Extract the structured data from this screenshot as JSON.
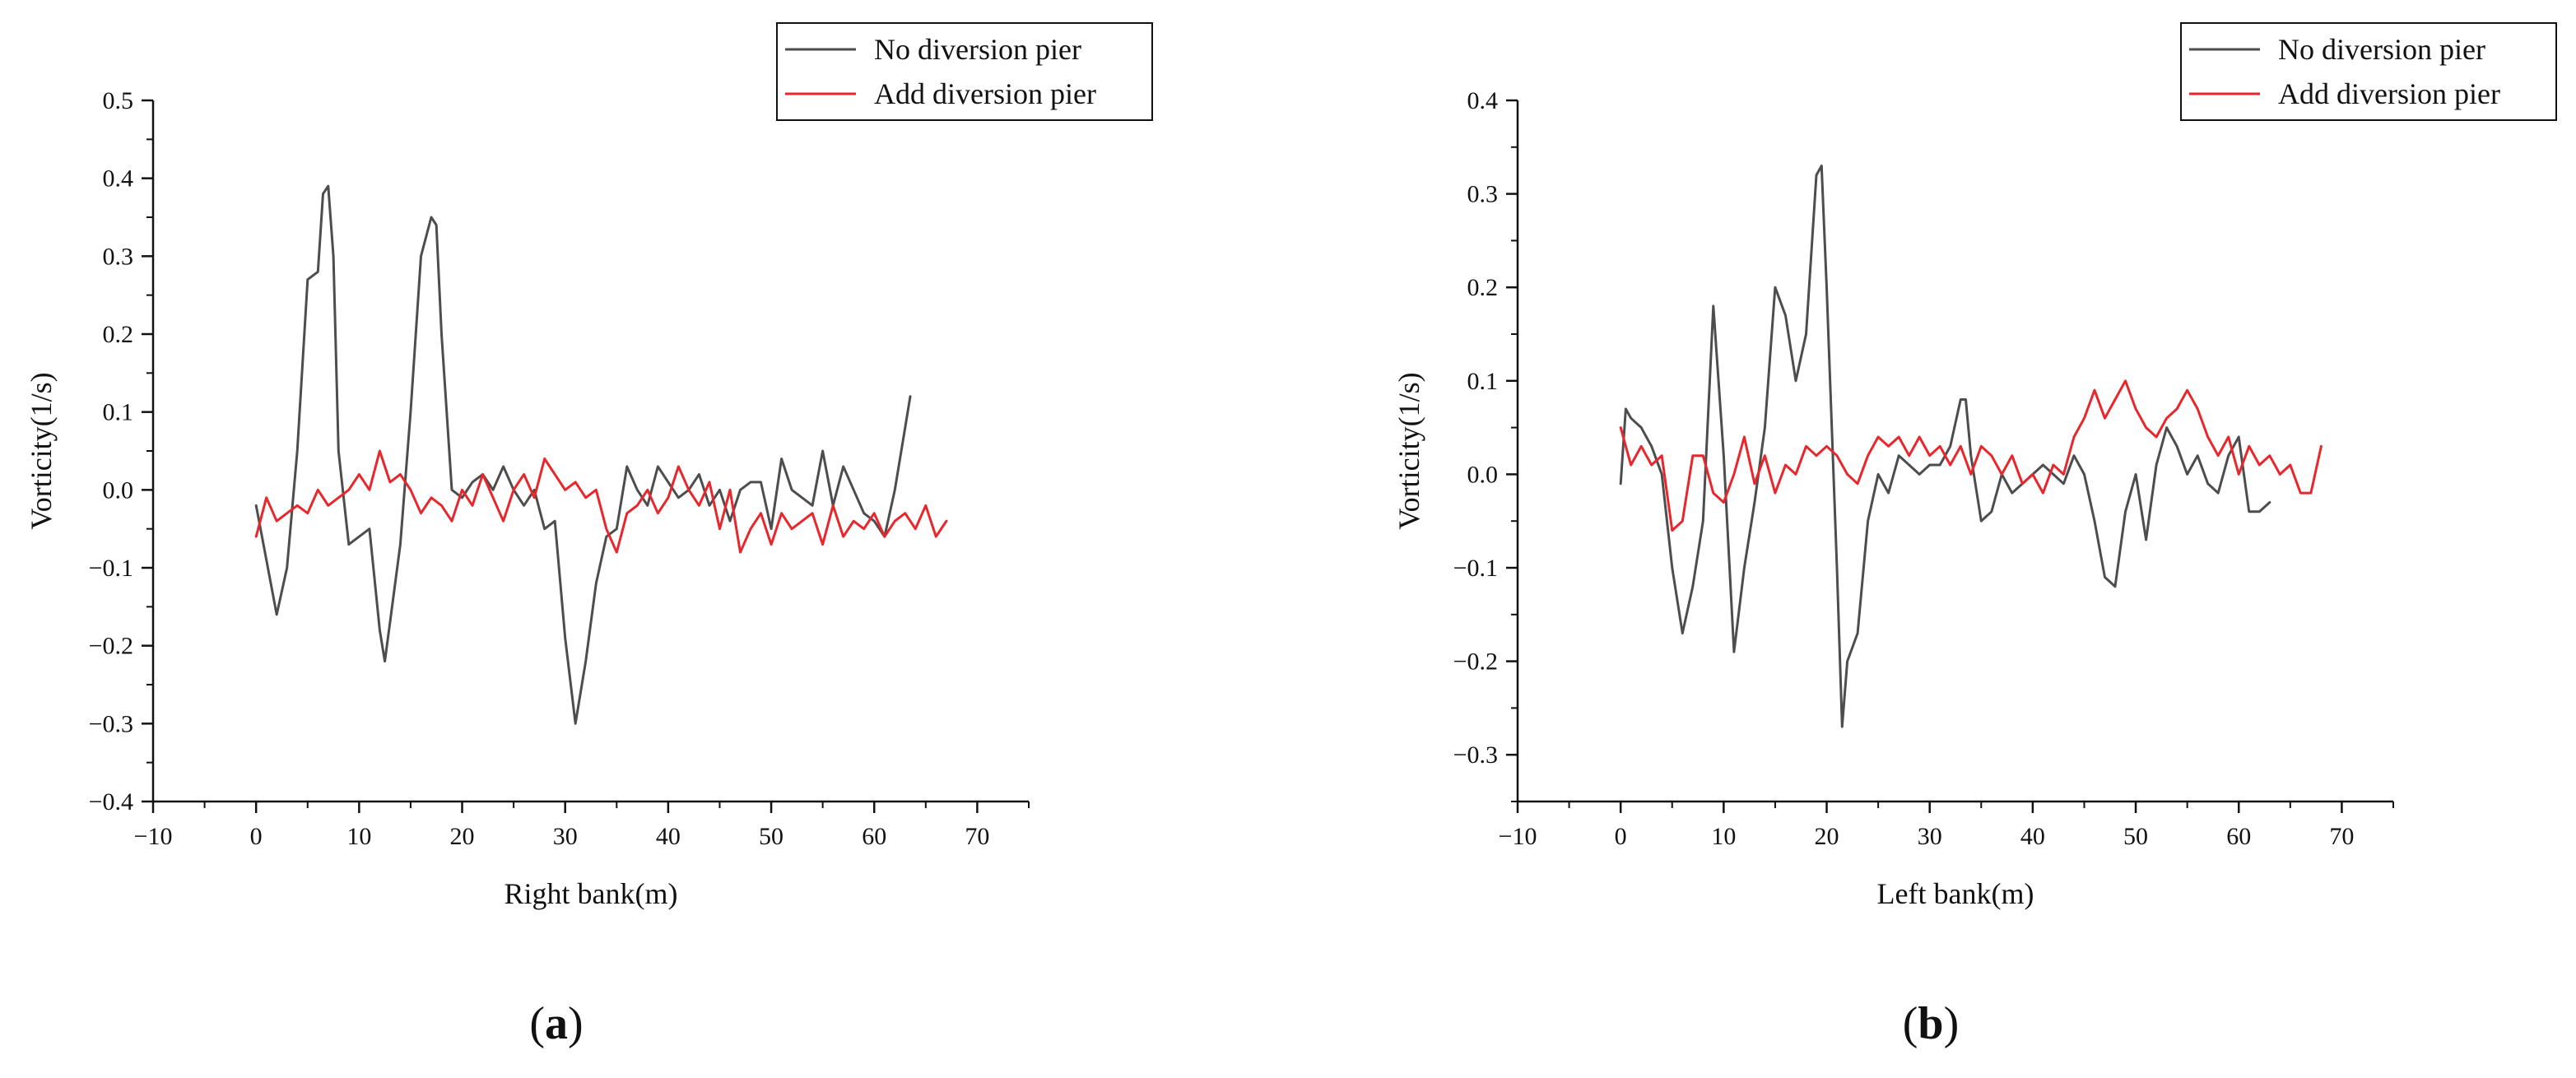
{
  "chart_data": [
    {
      "type": "line",
      "panel_label": "a",
      "xlabel": "Right bank(m)",
      "ylabel": "Vorticity(1/s)",
      "xlim": [
        -10,
        75
      ],
      "ylim": [
        -0.4,
        0.5
      ],
      "xticks": [
        -10,
        0,
        10,
        20,
        30,
        40,
        50,
        60,
        70
      ],
      "yticks": [
        -0.4,
        -0.3,
        -0.2,
        -0.1,
        0.0,
        0.1,
        0.2,
        0.3,
        0.4,
        0.5
      ],
      "ytick_labels": [
        "−0.4",
        "−0.3",
        "−0.2",
        "−0.1",
        "0.0",
        "0.1",
        "0.2",
        "0.3",
        "0.4",
        "0.5"
      ],
      "xtick_labels": [
        "−10",
        "0",
        "10",
        "20",
        "30",
        "40",
        "50",
        "60",
        "70"
      ],
      "legend_position": "top-right",
      "series": [
        {
          "name": "No diversion pier",
          "color": "#4d4d4d",
          "x": [
            0,
            1,
            2,
            3,
            4,
            5,
            6,
            6.5,
            7,
            7.5,
            8,
            9,
            10,
            11,
            12,
            12.5,
            13,
            14,
            15,
            16,
            17,
            17.5,
            18,
            19,
            20,
            21,
            22,
            23,
            24,
            25,
            26,
            27,
            28,
            29,
            30,
            31,
            32,
            33,
            34,
            35,
            36,
            37,
            38,
            39,
            40,
            41,
            42,
            43,
            44,
            45,
            46,
            47,
            48,
            49,
            50,
            51,
            52,
            53,
            54,
            55,
            56,
            57,
            58,
            59,
            60,
            61,
            62,
            63,
            63.5
          ],
          "y": [
            -0.02,
            -0.09,
            -0.16,
            -0.1,
            0.05,
            0.27,
            0.28,
            0.38,
            0.39,
            0.3,
            0.05,
            -0.07,
            -0.06,
            -0.05,
            -0.18,
            -0.22,
            -0.17,
            -0.07,
            0.1,
            0.3,
            0.35,
            0.34,
            0.2,
            0.0,
            -0.01,
            0.01,
            0.02,
            0.0,
            0.03,
            0.0,
            -0.02,
            0.0,
            -0.05,
            -0.04,
            -0.19,
            -0.3,
            -0.22,
            -0.12,
            -0.06,
            -0.05,
            0.03,
            0.0,
            -0.02,
            0.03,
            0.01,
            -0.01,
            0.0,
            0.02,
            -0.02,
            0.0,
            -0.04,
            0.0,
            0.01,
            0.01,
            -0.05,
            0.04,
            0.0,
            -0.01,
            -0.02,
            0.05,
            -0.02,
            0.03,
            0.0,
            -0.03,
            -0.04,
            -0.06,
            0.0,
            0.08,
            0.12
          ]
        },
        {
          "name": "Add diversion pier",
          "color": "#e8262b",
          "x": [
            0,
            1,
            2,
            3,
            4,
            5,
            6,
            7,
            8,
            9,
            10,
            11,
            12,
            13,
            14,
            15,
            16,
            17,
            18,
            19,
            20,
            21,
            22,
            23,
            24,
            25,
            26,
            27,
            28,
            29,
            30,
            31,
            32,
            33,
            34,
            35,
            36,
            37,
            38,
            39,
            40,
            41,
            42,
            43,
            44,
            45,
            46,
            47,
            48,
            49,
            50,
            51,
            52,
            53,
            54,
            55,
            56,
            57,
            58,
            59,
            60,
            61,
            62,
            63,
            64,
            65,
            66,
            67
          ],
          "y": [
            -0.06,
            -0.01,
            -0.04,
            -0.03,
            -0.02,
            -0.03,
            0.0,
            -0.02,
            -0.01,
            0.0,
            0.02,
            0.0,
            0.05,
            0.01,
            0.02,
            0.0,
            -0.03,
            -0.01,
            -0.02,
            -0.04,
            0.0,
            -0.02,
            0.02,
            -0.01,
            -0.04,
            0.0,
            0.02,
            -0.01,
            0.04,
            0.02,
            0.0,
            0.01,
            -0.01,
            0.0,
            -0.05,
            -0.08,
            -0.03,
            -0.02,
            0.0,
            -0.03,
            -0.01,
            0.03,
            0.0,
            -0.02,
            0.01,
            -0.05,
            0.0,
            -0.08,
            -0.05,
            -0.03,
            -0.07,
            -0.03,
            -0.05,
            -0.04,
            -0.03,
            -0.07,
            -0.02,
            -0.06,
            -0.04,
            -0.05,
            -0.03,
            -0.06,
            -0.04,
            -0.03,
            -0.05,
            -0.02,
            -0.06,
            -0.04
          ]
        }
      ]
    },
    {
      "type": "line",
      "panel_label": "b",
      "xlabel": "Left bank(m)",
      "ylabel": "Vorticity(1/s)",
      "xlim": [
        -10,
        75
      ],
      "ylim": [
        -0.35,
        0.4
      ],
      "xticks": [
        -10,
        0,
        10,
        20,
        30,
        40,
        50,
        60,
        70
      ],
      "yticks": [
        -0.3,
        -0.2,
        -0.1,
        0.0,
        0.1,
        0.2,
        0.3,
        0.4
      ],
      "ytick_labels": [
        "−0.3",
        "−0.2",
        "−0.1",
        "0.0",
        "0.1",
        "0.2",
        "0.3",
        "0.4"
      ],
      "xtick_labels": [
        "−10",
        "0",
        "10",
        "20",
        "30",
        "40",
        "50",
        "60",
        "70"
      ],
      "legend_position": "top-right",
      "series": [
        {
          "name": "No diversion pier",
          "color": "#4d4d4d",
          "x": [
            0,
            0.5,
            1,
            2,
            3,
            4,
            5,
            6,
            7,
            8,
            9,
            10,
            11,
            12,
            13,
            14,
            15,
            16,
            17,
            18,
            19,
            19.5,
            20,
            21,
            21.5,
            22,
            23,
            24,
            25,
            26,
            27,
            28,
            29,
            30,
            31,
            32,
            33,
            33.5,
            34,
            35,
            36,
            37,
            38,
            39,
            40,
            41,
            42,
            43,
            44,
            45,
            46,
            47,
            48,
            49,
            50,
            51,
            52,
            53,
            54,
            55,
            56,
            57,
            58,
            59,
            60,
            61,
            62,
            63
          ],
          "y": [
            -0.01,
            0.07,
            0.06,
            0.05,
            0.03,
            0.0,
            -0.1,
            -0.17,
            -0.12,
            -0.05,
            0.18,
            0.02,
            -0.19,
            -0.1,
            -0.03,
            0.05,
            0.2,
            0.17,
            0.1,
            0.15,
            0.32,
            0.33,
            0.2,
            -0.1,
            -0.27,
            -0.2,
            -0.17,
            -0.05,
            0.0,
            -0.02,
            0.02,
            0.01,
            0.0,
            0.01,
            0.01,
            0.03,
            0.08,
            0.08,
            0.02,
            -0.05,
            -0.04,
            0.0,
            -0.02,
            -0.01,
            0.0,
            0.01,
            0.0,
            -0.01,
            0.02,
            0.0,
            -0.05,
            -0.11,
            -0.12,
            -0.04,
            0.0,
            -0.07,
            0.01,
            0.05,
            0.03,
            0.0,
            0.02,
            -0.01,
            -0.02,
            0.02,
            0.04,
            -0.04,
            -0.04,
            -0.03
          ]
        },
        {
          "name": "Add diversion pier",
          "color": "#e8262b",
          "x": [
            0,
            1,
            2,
            3,
            4,
            5,
            6,
            7,
            8,
            9,
            10,
            11,
            12,
            13,
            14,
            15,
            16,
            17,
            18,
            19,
            20,
            21,
            22,
            23,
            24,
            25,
            26,
            27,
            28,
            29,
            30,
            31,
            32,
            33,
            34,
            35,
            36,
            37,
            38,
            39,
            40,
            41,
            42,
            43,
            44,
            45,
            46,
            47,
            48,
            49,
            50,
            51,
            52,
            53,
            54,
            55,
            56,
            57,
            58,
            59,
            60,
            61,
            62,
            63,
            64,
            65,
            66,
            67,
            68
          ],
          "y": [
            0.05,
            0.01,
            0.03,
            0.01,
            0.02,
            -0.06,
            -0.05,
            0.02,
            0.02,
            -0.02,
            -0.03,
            0.0,
            0.04,
            -0.01,
            0.02,
            -0.02,
            0.01,
            0.0,
            0.03,
            0.02,
            0.03,
            0.02,
            0.0,
            -0.01,
            0.02,
            0.04,
            0.03,
            0.04,
            0.02,
            0.04,
            0.02,
            0.03,
            0.01,
            0.03,
            0.0,
            0.03,
            0.02,
            0.0,
            0.02,
            -0.01,
            0.0,
            -0.02,
            0.01,
            0.0,
            0.04,
            0.06,
            0.09,
            0.06,
            0.08,
            0.1,
            0.07,
            0.05,
            0.04,
            0.06,
            0.07,
            0.09,
            0.07,
            0.04,
            0.02,
            0.04,
            0.0,
            0.03,
            0.01,
            0.02,
            0.0,
            0.01,
            -0.02,
            -0.02,
            0.03
          ]
        }
      ]
    }
  ]
}
